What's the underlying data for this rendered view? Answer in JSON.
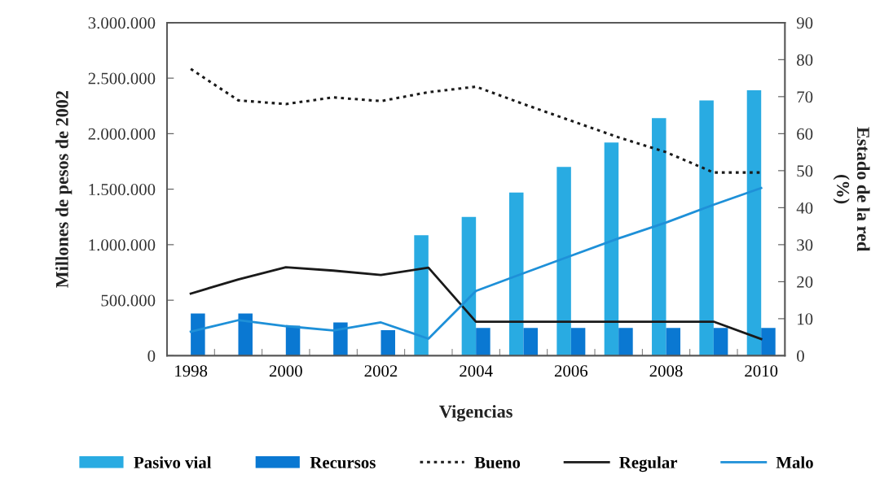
{
  "chart_data": {
    "type": "bar",
    "xlabel": "Vigencias",
    "ylabel": "Millones de pesos de 2002",
    "y2label": "Estado de la red\n(%)",
    "categories": [
      "1998",
      null,
      "2000",
      null,
      "2002",
      null,
      "2004",
      null,
      "2006",
      null,
      "2008",
      null,
      "2010"
    ],
    "series": [
      {
        "name": "Pasivo vial",
        "color": "#29abe2",
        "values": [
          null,
          null,
          null,
          null,
          null,
          1085000,
          1250000,
          1470000,
          1700000,
          1920000,
          2140000,
          2300000,
          2390000
        ]
      },
      {
        "name": "Recursos",
        "color": "#0a78d2",
        "values": [
          380000,
          380000,
          270000,
          300000,
          230000,
          null,
          250000,
          250000,
          250000,
          250000,
          250000,
          250000,
          250000
        ]
      },
      {
        "name": "Bueno",
        "type": "line",
        "axis": "y2",
        "color": "#1a1a1a",
        "line_style": "dotted",
        "values": [
          77.5,
          69,
          68,
          69.8,
          68.8,
          71.2,
          72.7,
          68,
          63.5,
          59,
          55,
          49.5,
          49.5
        ]
      },
      {
        "name": "Regular",
        "type": "line",
        "axis": "y2",
        "color": "#1a1a1a",
        "line_style": "solid",
        "values": [
          16.8,
          20.6,
          23.9,
          23,
          21.8,
          23.8,
          9.2,
          9.2,
          9.2,
          9.2,
          9.2,
          9.2,
          4.5
        ]
      },
      {
        "name": "Malo",
        "type": "line",
        "axis": "y2",
        "color": "#1e90d8",
        "line_style": "solid",
        "values": [
          6.5,
          9.6,
          8,
          6.8,
          9,
          4.6,
          17.5,
          22.3,
          27,
          31.7,
          36,
          40.8,
          45.3
        ]
      }
    ],
    "ylim": [
      0,
      3000000
    ],
    "yticks": [
      0,
      {
        "value": 500000,
        "label": "500.000"
      },
      {
        "value": 1000000,
        "label": "1.000.000"
      },
      {
        "value": 1500000,
        "label": "1.500.000"
      },
      {
        "value": 2000000,
        "label": "2.000.000"
      },
      {
        "value": 2500000,
        "label": "2.500.000"
      },
      {
        "value": 3000000,
        "label": "3.000.000"
      }
    ],
    "y2lim": [
      0,
      90
    ],
    "y2ticks": [
      0,
      10,
      20,
      30,
      40,
      50,
      60,
      70,
      80,
      90
    ],
    "legend": "bottom"
  }
}
